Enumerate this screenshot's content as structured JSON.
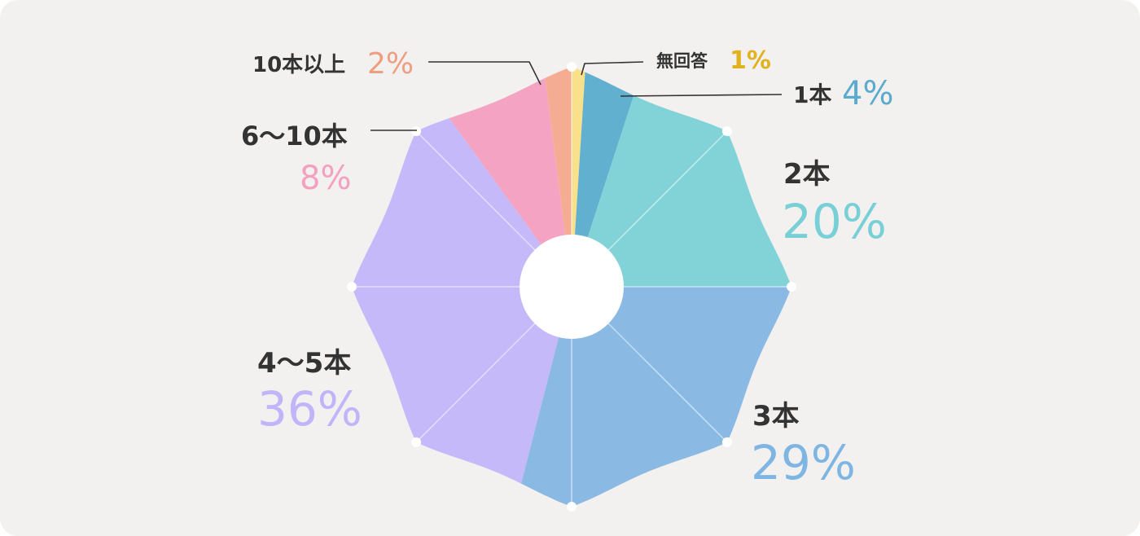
{
  "chart_data": {
    "type": "pie",
    "start": "top",
    "direction": "clockwise",
    "categories": [
      "無回答",
      "1本",
      "2本",
      "3本",
      "4〜5本",
      "6〜10本",
      "10本以上"
    ],
    "values": [
      1,
      4,
      20,
      29,
      36,
      8,
      2
    ],
    "value_labels": [
      "1%",
      "4%",
      "20%",
      "29%",
      "36%",
      "8%",
      "2%"
    ],
    "colors": [
      "#f9e08a",
      "#62b0cf",
      "#82d3d8",
      "#8abae3",
      "#c5b9fa",
      "#f4a3c3",
      "#f4ad93"
    ],
    "label_colors": [
      "#e0b21f",
      "#5aabce",
      "#78d0d6",
      "#7fb5e2",
      "#c2b4f8",
      "#f3a0c1",
      "#ef9d7f"
    ],
    "radar_rings": false,
    "spokes": 8
  }
}
